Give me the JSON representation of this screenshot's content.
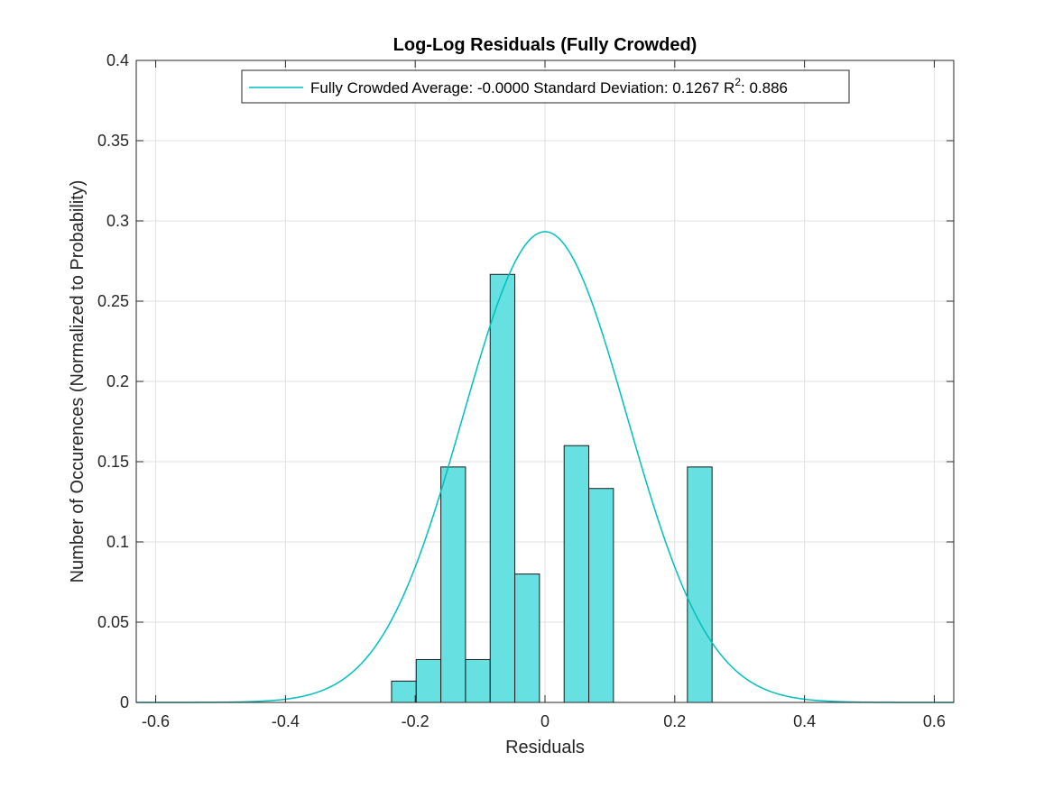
{
  "chart_data": {
    "type": "bar",
    "title": "Log-Log Residuals (Fully Crowded)",
    "xlabel": "Residuals",
    "ylabel": "Number of Occurences (Normalized to Probability)",
    "xlim": [
      -0.63,
      0.63
    ],
    "ylim": [
      0,
      0.4
    ],
    "xticks": [
      -0.6,
      -0.4,
      -0.2,
      0,
      0.2,
      0.4,
      0.6
    ],
    "xtick_labels": [
      "-0.6",
      "-0.4",
      "-0.2",
      "0",
      "0.2",
      "0.4",
      "0.6"
    ],
    "yticks": [
      0,
      0.05,
      0.1,
      0.15,
      0.2,
      0.25,
      0.3,
      0.35,
      0.4
    ],
    "ytick_labels": [
      "0",
      "0.05",
      "0.1",
      "0.15",
      "0.2",
      "0.25",
      "0.3",
      "0.35",
      "0.4"
    ],
    "grid": true,
    "legend_position": "top",
    "bar_color": "#66e0e0",
    "curve_color": "#00bfbf",
    "bins": [
      {
        "x0": -0.2365,
        "x1": -0.1985,
        "value": 0.0133
      },
      {
        "x0": -0.1985,
        "x1": -0.1605,
        "value": 0.0267
      },
      {
        "x0": -0.1605,
        "x1": -0.1225,
        "value": 0.1467
      },
      {
        "x0": -0.1225,
        "x1": -0.0845,
        "value": 0.0267
      },
      {
        "x0": -0.0845,
        "x1": -0.0465,
        "value": 0.2667
      },
      {
        "x0": -0.0465,
        "x1": -0.0085,
        "value": 0.08
      },
      {
        "x0": 0.0295,
        "x1": 0.0675,
        "value": 0.16
      },
      {
        "x0": 0.0675,
        "x1": 0.1055,
        "value": 0.1333
      },
      {
        "x0": 0.2195,
        "x1": 0.2575,
        "value": 0.1467
      }
    ],
    "series": [
      {
        "name": "Fully Crowded",
        "type": "normal_fit",
        "mean": 0.0,
        "std": 0.1267,
        "peak": 0.2933
      }
    ],
    "legend": {
      "prefix": "Fully Crowded Average: -0.0000 Standard Deviation: 0.1267 R",
      "superscript": "2",
      "suffix": ": 0.886"
    }
  }
}
